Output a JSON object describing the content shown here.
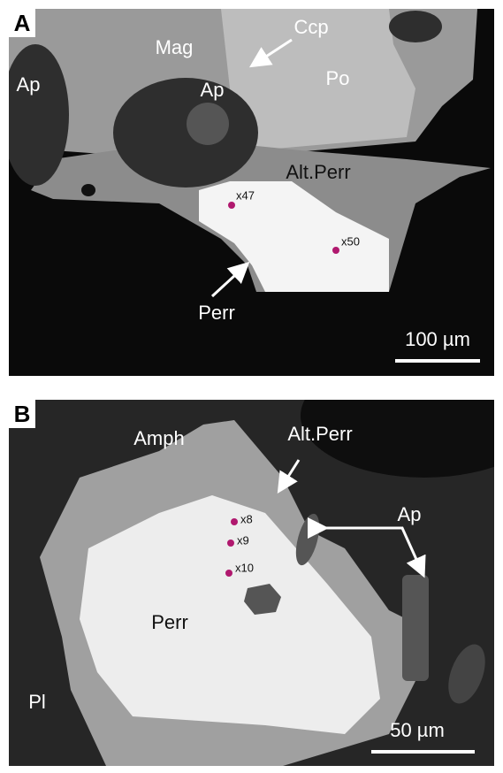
{
  "panels": [
    {
      "letter": "A",
      "labels": [
        "Mag",
        "Ccp",
        "Ap",
        "Ap",
        "Po",
        "Alt.Perr",
        "Perr"
      ],
      "points": [
        "x47",
        "x50"
      ],
      "scale_bar": "100 µm"
    },
    {
      "letter": "B",
      "labels": [
        "Amph",
        "Alt.Perr",
        "Ap",
        "Perr",
        "Pl"
      ],
      "points": [
        "x8",
        "x9",
        "x10"
      ],
      "scale_bar": "50 µm"
    }
  ]
}
